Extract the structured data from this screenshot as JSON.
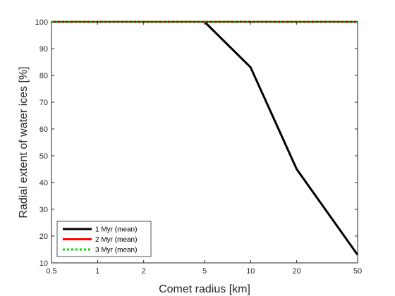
{
  "chart_data": {
    "type": "line",
    "title": "",
    "xlabel": "Comet radius [km]",
    "ylabel": "Radial extent of water ices [%]",
    "xscale": "log",
    "xlim": [
      0.5,
      50
    ],
    "ylim": [
      10,
      100
    ],
    "xticks": [
      0.5,
      1,
      2,
      5,
      10,
      20,
      50
    ],
    "xtick_labels": [
      "0.5",
      "1",
      "2",
      "5",
      "10",
      "20",
      "50"
    ],
    "yticks": [
      10,
      20,
      30,
      40,
      50,
      60,
      70,
      80,
      90,
      100
    ],
    "ytick_labels": [
      "10",
      "20",
      "30",
      "40",
      "50",
      "60",
      "70",
      "80",
      "90",
      "100"
    ],
    "grid": false,
    "legend_position": "bottom-left",
    "series": [
      {
        "name": "1 Myr (mean)",
        "color": "#000000",
        "style": "solid",
        "x": [
          0.5,
          1,
          2,
          5,
          10,
          20,
          50
        ],
        "y": [
          100,
          100,
          100,
          100,
          83,
          45,
          13
        ]
      },
      {
        "name": "2 Myr (mean)",
        "color": "#ff0000",
        "style": "solid",
        "x": [
          0.5,
          1,
          2,
          5,
          10,
          20,
          50
        ],
        "y": [
          100,
          100,
          100,
          100,
          100,
          100,
          100
        ]
      },
      {
        "name": "3 Myr (mean)",
        "color": "#00e000",
        "style": "dotted",
        "x": [
          0.5,
          1,
          2,
          5,
          10,
          20,
          50
        ],
        "y": [
          100,
          100,
          100,
          100,
          100,
          100,
          100
        ]
      }
    ]
  }
}
